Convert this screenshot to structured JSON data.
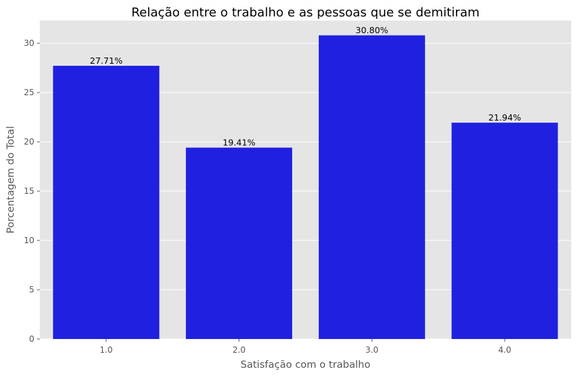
{
  "chart_data": {
    "type": "bar",
    "title": "Relação entre o trabalho e as pessoas que se demitiram",
    "xlabel": "Satisfação com o trabalho",
    "ylabel": "Porcentagem do Total",
    "categories": [
      "1.0",
      "2.0",
      "3.0",
      "4.0"
    ],
    "values": [
      27.71,
      19.41,
      30.8,
      21.94
    ],
    "data_labels": [
      "27.71%",
      "19.41%",
      "30.80%",
      "21.94%"
    ],
    "ylim": [
      0,
      32.3
    ],
    "yticks": [
      0,
      5,
      10,
      15,
      20,
      25,
      30
    ],
    "grid": true,
    "colors": {
      "bar": "#2020e0",
      "plot_background": "#e5e5e5",
      "grid": "#ffffff",
      "text": "#555555"
    }
  }
}
